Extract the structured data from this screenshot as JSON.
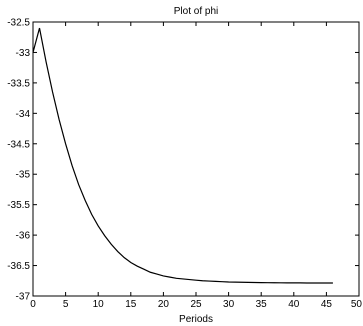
{
  "chart_data": {
    "type": "line",
    "title": "Plot of phi",
    "xlabel": "Periods",
    "ylabel": "",
    "xlim": [
      0,
      50
    ],
    "ylim": [
      -37,
      -32.5
    ],
    "xticks": [
      0,
      5,
      10,
      15,
      20,
      25,
      30,
      35,
      40,
      45,
      50
    ],
    "xtick_labels": [
      "0",
      "5",
      "10",
      "15",
      "20",
      "25",
      "30",
      "35",
      "40",
      "45",
      "50"
    ],
    "yticks": [
      -32.5,
      -33,
      -33.5,
      -34,
      -34.5,
      -35,
      -35.5,
      -36,
      -36.5,
      -37
    ],
    "ytick_labels": [
      "-32.5",
      "-33",
      "-33.5",
      "-34",
      "-34.5",
      "-35",
      "-35.5",
      "-36",
      "-36.5",
      "-37"
    ],
    "grid": false,
    "legend": "none",
    "line_color": "#000000",
    "series": [
      {
        "x": [
          0,
          1,
          2,
          3,
          4,
          5,
          6,
          7,
          8,
          9,
          10,
          11,
          12,
          13,
          14,
          15,
          16,
          17,
          18,
          19,
          20,
          21,
          22,
          23,
          24,
          25,
          26,
          27,
          28,
          29,
          30,
          31,
          32,
          33,
          34,
          35,
          36,
          37,
          38,
          39,
          40,
          41,
          42,
          43,
          44,
          45,
          46
        ],
        "values": [
          -33.0,
          -32.6,
          -33.15,
          -33.65,
          -34.1,
          -34.5,
          -34.86,
          -35.17,
          -35.43,
          -35.66,
          -35.85,
          -36.01,
          -36.15,
          -36.27,
          -36.37,
          -36.45,
          -36.51,
          -36.56,
          -36.61,
          -36.64,
          -36.67,
          -36.69,
          -36.71,
          -36.72,
          -36.73,
          -36.74,
          -36.75,
          -36.755,
          -36.76,
          -36.765,
          -36.77,
          -36.772,
          -36.774,
          -36.776,
          -36.778,
          -36.78,
          -36.781,
          -36.782,
          -36.783,
          -36.784,
          -36.785,
          -36.785,
          -36.786,
          -36.786,
          -36.787,
          -36.787,
          -36.787
        ]
      }
    ]
  }
}
